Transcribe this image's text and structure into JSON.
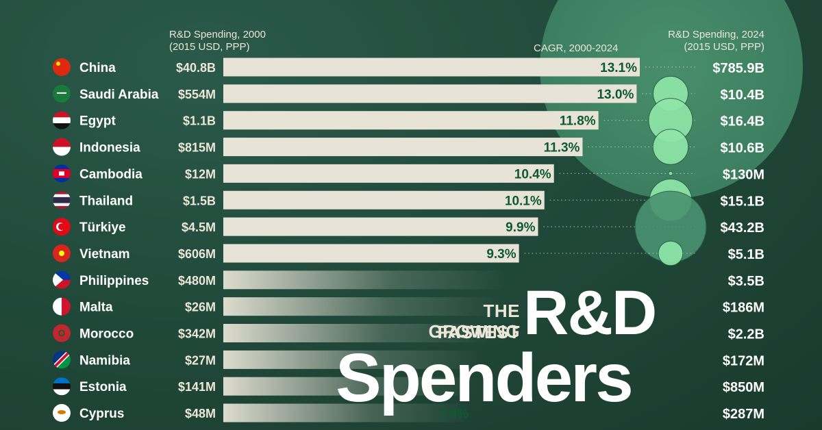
{
  "colors": {
    "background": "#214a3b",
    "bar": "#e7e3d6",
    "cagr_text": "#0d5a32",
    "bubble": "#8fe6a8",
    "big_circle": "#4f9a75"
  },
  "headers": {
    "left_line1": "R&D Spending, 2000",
    "left_line2": "(2015 USD, PPP)",
    "middle": "CAGR, 2000-2024",
    "right_line1": "R&D Spending, 2024",
    "right_line2": "(2015 USD, PPP)"
  },
  "title": {
    "small_line1": "THE FASTEST",
    "small_line2": "GROWING",
    "big_line1": "R&D",
    "big_line2": "Spenders"
  },
  "chart_data": {
    "type": "bar",
    "orientation": "horizontal",
    "title": "THE FASTEST GROWING R&D Spenders",
    "categories": [
      "China",
      "Saudi Arabia",
      "Egypt",
      "Indonesia",
      "Cambodia",
      "Thailand",
      "Türkiye",
      "Vietnam",
      "Philippines",
      "Malta",
      "Morocco",
      "Namibia",
      "Estonia",
      "Cyprus"
    ],
    "flags": [
      "china-flag-icon",
      "saudi-arabia-flag-icon",
      "egypt-flag-icon",
      "indonesia-flag-icon",
      "cambodia-flag-icon",
      "thailand-flag-icon",
      "turkiye-flag-icon",
      "vietnam-flag-icon",
      "philippines-flag-icon",
      "malta-flag-icon",
      "morocco-flag-icon",
      "namibia-flag-icon",
      "estonia-flag-icon",
      "cyprus-flag-icon"
    ],
    "series": [
      {
        "name": "CAGR, 2000-2024",
        "values": [
          13.1,
          13.0,
          11.8,
          11.3,
          10.4,
          10.1,
          9.9,
          9.3,
          8.9,
          8.7,
          8.4,
          8.2,
          8.0,
          7.8
        ],
        "labels": [
          "13.1%",
          "13.0%",
          "11.8%",
          "11.3%",
          "10.4%",
          "10.1%",
          "9.9%",
          "9.3%",
          "",
          "",
          "",
          "",
          "",
          "7.8%"
        ]
      }
    ],
    "spending_2000": [
      "$40.8B",
      "$554M",
      "$1.1B",
      "$815M",
      "$12M",
      "$1.5B",
      "$4.5M",
      "$606M",
      "$480M",
      "$26M",
      "$342M",
      "$27M",
      "$141M",
      "$48M"
    ],
    "spending_2024": [
      "$785.9B",
      "$10.4B",
      "$16.4B",
      "$10.6B",
      "$130M",
      "$15.1B",
      "$43.2B",
      "$5.1B",
      "$3.5B",
      "$186M",
      "$2.2B",
      "$172M",
      "$850M",
      "$287M"
    ],
    "spending_2024_billions": [
      785.9,
      10.4,
      16.4,
      10.6,
      0.13,
      15.1,
      43.2,
      5.1,
      3.5,
      0.186,
      2.2,
      0.172,
      0.85,
      0.287
    ],
    "xlim": [
      0,
      13.1
    ],
    "grid": false,
    "legend": "none"
  }
}
